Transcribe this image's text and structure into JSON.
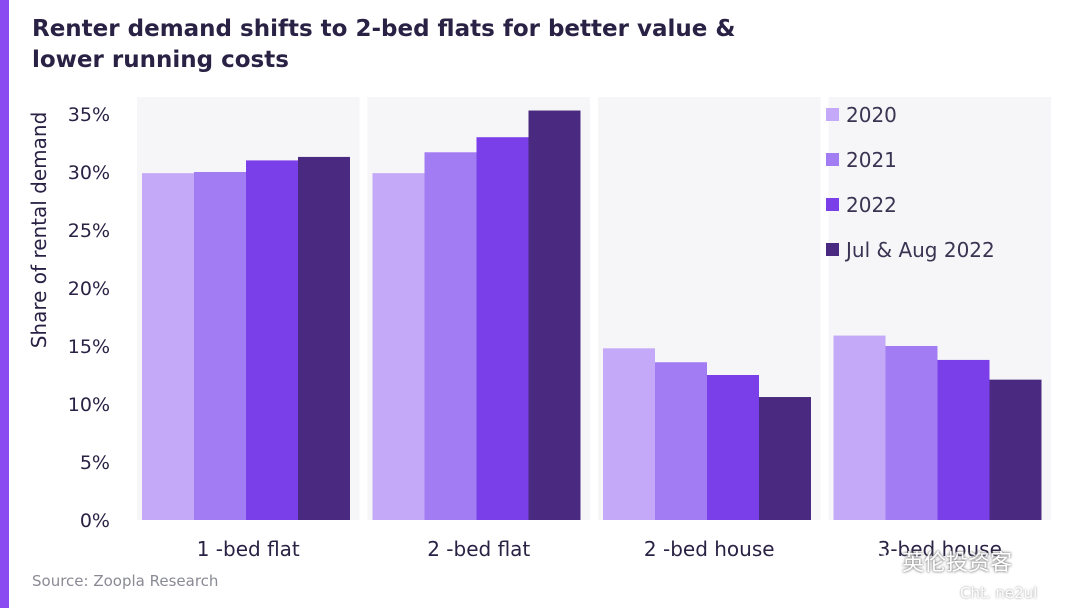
{
  "title": "Renter demand shifts to 2-bed flats for better value & lower running costs",
  "source": "Source: Zoopla Research",
  "watermark": {
    "text": "英伦投资客",
    "sub": "Cht. ne2ul",
    "icon": "wechat-icon"
  },
  "colors": {
    "accent": "#8a4cf0"
  },
  "chart_data": {
    "type": "bar",
    "ylabel": "Share of rental demand",
    "xlabel": "",
    "ylim": [
      0,
      35
    ],
    "yticks": [
      0,
      5,
      10,
      15,
      20,
      25,
      30,
      35
    ],
    "ytick_labels": [
      "0%",
      "5%",
      "10%",
      "15%",
      "20%",
      "25%",
      "30%",
      "35%"
    ],
    "categories": [
      "1 -bed flat",
      "2 -bed flat",
      "2 -bed house",
      "3-bed house"
    ],
    "series": [
      {
        "name": "2020",
        "color": "#c3a9f7",
        "values": [
          29.9,
          29.9,
          14.8,
          15.9
        ]
      },
      {
        "name": "2021",
        "color": "#a27cf2",
        "values": [
          30.0,
          31.7,
          13.6,
          15.0
        ]
      },
      {
        "name": "2022",
        "color": "#7b3fea",
        "values": [
          31.0,
          33.0,
          12.5,
          13.8
        ]
      },
      {
        "name": "Jul & Aug 2022",
        "color": "#4a2a80",
        "values": [
          31.3,
          35.3,
          10.6,
          12.1
        ]
      }
    ],
    "legend_position": "top-right",
    "grid": false
  }
}
